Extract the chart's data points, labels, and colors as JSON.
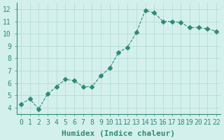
{
  "x": [
    0,
    1,
    2,
    3,
    4,
    5,
    6,
    7,
    8,
    9,
    10,
    11,
    12,
    13,
    14,
    15,
    16,
    17,
    18,
    19,
    20,
    21,
    22
  ],
  "y": [
    4.3,
    4.7,
    3.9,
    5.1,
    5.7,
    6.3,
    6.2,
    5.7,
    5.7,
    6.6,
    7.2,
    8.5,
    8.9,
    10.1,
    11.9,
    11.7,
    11.0,
    11.0,
    10.9,
    10.5,
    10.5,
    10.4,
    10.2
  ],
  "line_color": "#2e8b78",
  "marker": "D",
  "marker_size": 3,
  "line_width": 0.8,
  "xlabel": "Humidex (Indice chaleur)",
  "ylim": [
    3.5,
    12.5
  ],
  "xlim": [
    -0.5,
    22.5
  ],
  "yticks": [
    4,
    5,
    6,
    7,
    8,
    9,
    10,
    11,
    12
  ],
  "xticks": [
    0,
    1,
    2,
    3,
    4,
    5,
    6,
    7,
    8,
    9,
    10,
    11,
    12,
    13,
    14,
    15,
    16,
    17,
    18,
    19,
    20,
    21,
    22
  ],
  "bg_color": "#d4f0ec",
  "grid_color": "#b0d8d4",
  "axis_color": "#2e8b78",
  "tick_color": "#2e8b78",
  "label_color": "#2e8b78",
  "xlabel_fontsize": 8,
  "tick_fontsize": 7
}
